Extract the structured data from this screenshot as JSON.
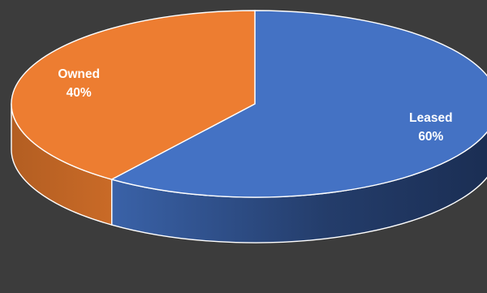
{
  "chart_data": {
    "type": "pie",
    "style": "3d",
    "title": "",
    "categories": [
      "Leased",
      "Owned"
    ],
    "values": [
      60,
      40
    ],
    "value_labels": [
      "60%",
      "40%"
    ],
    "colors": [
      "#4472c4",
      "#ed7d31"
    ],
    "legend": "none",
    "data_labels": "inside"
  }
}
